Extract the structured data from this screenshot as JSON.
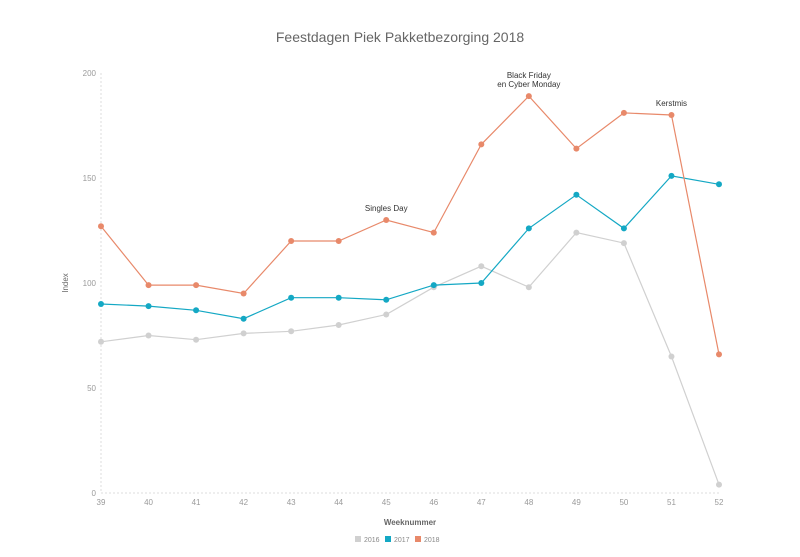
{
  "chart_data": {
    "type": "line",
    "title": "Feestdagen Piek Pakketbezorging 2018",
    "xlabel": "Weeknummer",
    "ylabel": "Index",
    "x": [
      39,
      40,
      41,
      42,
      43,
      44,
      45,
      46,
      47,
      48,
      49,
      50,
      51,
      52
    ],
    "ylim": [
      0,
      200
    ],
    "yticks": [
      0,
      50,
      100,
      150,
      200
    ],
    "grid": false,
    "legend_position": "bottom-center",
    "series": [
      {
        "name": "2016",
        "color": "#d0d0d0",
        "values": [
          72,
          75,
          73,
          76,
          77,
          80,
          85,
          98,
          108,
          98,
          124,
          119,
          65,
          4
        ]
      },
      {
        "name": "2017",
        "color": "#14a8c4",
        "values": [
          90,
          89,
          87,
          83,
          93,
          93,
          92,
          99,
          100,
          126,
          142,
          126,
          151,
          147
        ]
      },
      {
        "name": "2018",
        "color": "#e8896a",
        "values": [
          127,
          99,
          99,
          95,
          120,
          120,
          130,
          124,
          166,
          189,
          164,
          181,
          180,
          66
        ]
      }
    ],
    "annotations": [
      {
        "x": 45,
        "y": 130,
        "lines": [
          "Singles Day"
        ]
      },
      {
        "x": 48,
        "y": 189,
        "lines": [
          "Black Friday",
          "en Cyber Monday"
        ]
      },
      {
        "x": 51,
        "y": 180,
        "lines": [
          "Kerstmis"
        ]
      }
    ]
  }
}
